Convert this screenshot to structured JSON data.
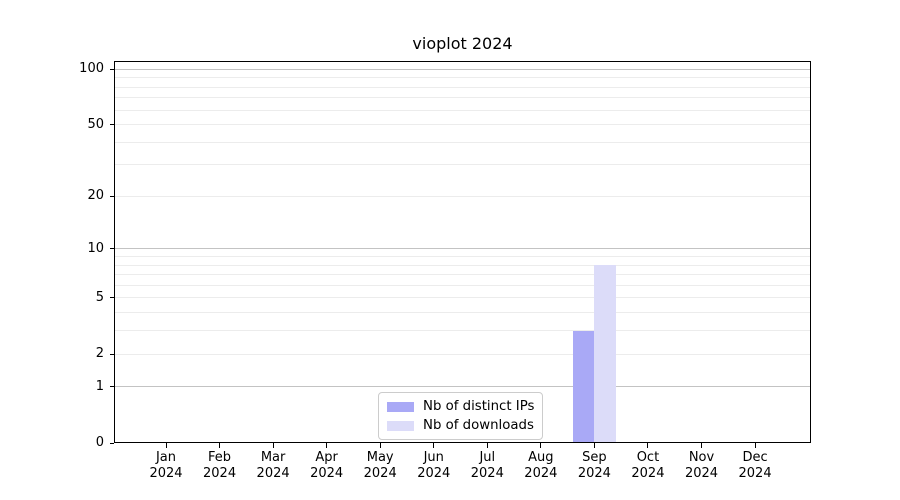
{
  "chart_data": {
    "type": "bar",
    "title": "vioplot 2024",
    "categories": [
      "Jan",
      "Feb",
      "Mar",
      "Apr",
      "May",
      "Jun",
      "Jul",
      "Aug",
      "Sep",
      "Oct",
      "Nov",
      "Dec"
    ],
    "x_tick_second_line": "2024",
    "series": [
      {
        "name": "Nb of distinct IPs",
        "color": "#a9a9f6",
        "values": [
          0,
          0,
          0,
          0,
          0,
          0,
          0,
          0,
          3,
          0,
          0,
          0
        ]
      },
      {
        "name": "Nb of downloads",
        "color": "#dcdcf9",
        "values": [
          0,
          0,
          0,
          0,
          0,
          0,
          0,
          0,
          8,
          0,
          0,
          0
        ]
      }
    ],
    "xlabel": "",
    "ylabel": "",
    "yscale": "log1p",
    "ylim": [
      0,
      110
    ],
    "yticks": [
      0,
      1,
      2,
      5,
      10,
      20,
      50,
      100
    ],
    "gridlines_major": [
      1,
      10,
      100
    ],
    "gridlines_minor": [
      2,
      3,
      4,
      5,
      6,
      7,
      8,
      9,
      20,
      30,
      40,
      50,
      60,
      70,
      80,
      90
    ],
    "grid": "horizontal",
    "legend_position": "lower center",
    "colors": {
      "grid_major": "#c3c3c3",
      "grid_minor": "#ececec",
      "axis": "#000000",
      "background": "#ffffff",
      "legend_border": "#cccccc",
      "text": "#000000"
    }
  }
}
